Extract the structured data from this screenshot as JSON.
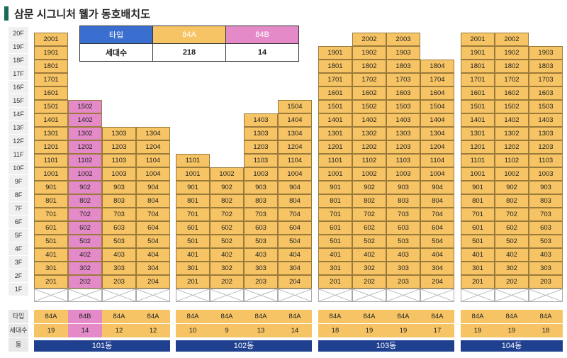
{
  "title": "삼문 시그니처 웰가 동호배치도",
  "floors": [
    "20F",
    "19F",
    "18F",
    "17F",
    "16F",
    "15F",
    "14F",
    "13F",
    "12F",
    "11F",
    "10F",
    "9F",
    "8F",
    "7F",
    "6F",
    "5F",
    "4F",
    "3F",
    "2F",
    "1F"
  ],
  "legend": {
    "type_label": "타입",
    "households_label": "세대수",
    "types": [
      "84A",
      "84B"
    ],
    "counts": [
      "218",
      "14"
    ]
  },
  "summary_labels": {
    "type": "타입",
    "households": "세대수",
    "building": "동"
  },
  "colors": {
    "84A": "#f6c464",
    "84B": "#e48ac8",
    "building": "#1f3f8f",
    "legend_header": "#3a6ecf"
  },
  "buildings": [
    {
      "name": "101동",
      "lines": [
        {
          "line": 1,
          "top": 20,
          "type": "84A",
          "count": "19"
        },
        {
          "line": 2,
          "top": 15,
          "type": "84B",
          "count": "14"
        },
        {
          "line": 3,
          "top": 13,
          "type": "84A",
          "count": "12"
        },
        {
          "line": 4,
          "top": 13,
          "type": "84A",
          "count": "12"
        }
      ]
    },
    {
      "name": "102동",
      "lines": [
        {
          "line": 1,
          "top": 11,
          "type": "84A",
          "count": "10"
        },
        {
          "line": 2,
          "top": 10,
          "type": "84A",
          "count": "9"
        },
        {
          "line": 3,
          "top": 14,
          "type": "84A",
          "count": "13"
        },
        {
          "line": 4,
          "top": 15,
          "type": "84A",
          "count": "14"
        }
      ]
    },
    {
      "name": "103동",
      "lines": [
        {
          "line": 1,
          "top": 19,
          "type": "84A",
          "count": "18"
        },
        {
          "line": 2,
          "top": 20,
          "type": "84A",
          "count": "19"
        },
        {
          "line": 3,
          "top": 20,
          "type": "84A",
          "count": "19"
        },
        {
          "line": 4,
          "top": 18,
          "type": "84A",
          "count": "17"
        }
      ]
    },
    {
      "name": "104동",
      "lines": [
        {
          "line": 1,
          "top": 20,
          "type": "84A",
          "count": "19"
        },
        {
          "line": 2,
          "top": 20,
          "type": "84A",
          "count": "19"
        },
        {
          "line": 3,
          "top": 19,
          "type": "84A",
          "count": "18"
        }
      ]
    }
  ]
}
